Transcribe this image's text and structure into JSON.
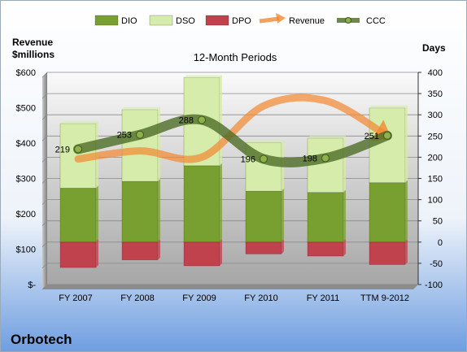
{
  "chart_data": {
    "type": "bar",
    "title": "12-Month Periods",
    "company": "Orbotech",
    "left_axis_label": [
      "Revenue",
      "$millions"
    ],
    "right_axis_label": "Days",
    "categories": [
      "FY 2007",
      "FY 2008",
      "FY 2009",
      "FY 2010",
      "FY 2011",
      "TTM 9-2012"
    ],
    "left_ticks": [
      "$-",
      "$100",
      "$200",
      "$300",
      "$400",
      "$500",
      "$600"
    ],
    "right_ticks": [
      "-100",
      "-50",
      "0",
      "50",
      "100",
      "150",
      "200",
      "250",
      "300",
      "350",
      "400"
    ],
    "ylim_days": [
      -100,
      400
    ],
    "ylim_revenue": [
      0,
      600
    ],
    "legend_position": "top",
    "legend": [
      "DIO",
      "DSO",
      "DPO",
      "Revenue",
      "CCC"
    ],
    "series": [
      {
        "name": "DIO",
        "values": [
          127,
          143,
          180,
          120,
          117,
          140
        ]
      },
      {
        "name": "DSO",
        "values": [
          152,
          169,
          208,
          114,
          128,
          176
        ]
      },
      {
        "name": "DPO",
        "values": [
          -60,
          -42,
          -56,
          -28,
          -33,
          -53
        ]
      },
      {
        "name": "Revenue",
        "axis": "left",
        "values": [
          355,
          378,
          360,
          505,
          520,
          420
        ]
      },
      {
        "name": "CCC",
        "values": [
          219,
          253,
          288,
          196,
          198,
          251
        ]
      }
    ],
    "data_labels": [
      "219",
      "253",
      "288",
      "196",
      "198",
      "251"
    ],
    "colors": {
      "DIO": "#78a031",
      "DSO": "#d6ecaa",
      "DPO": "#c0424d",
      "Revenue": "#f28a35",
      "CCC": "#4a6a22",
      "background_top": "#f2f2f2",
      "background_bottom": "#7fa9e3"
    }
  }
}
